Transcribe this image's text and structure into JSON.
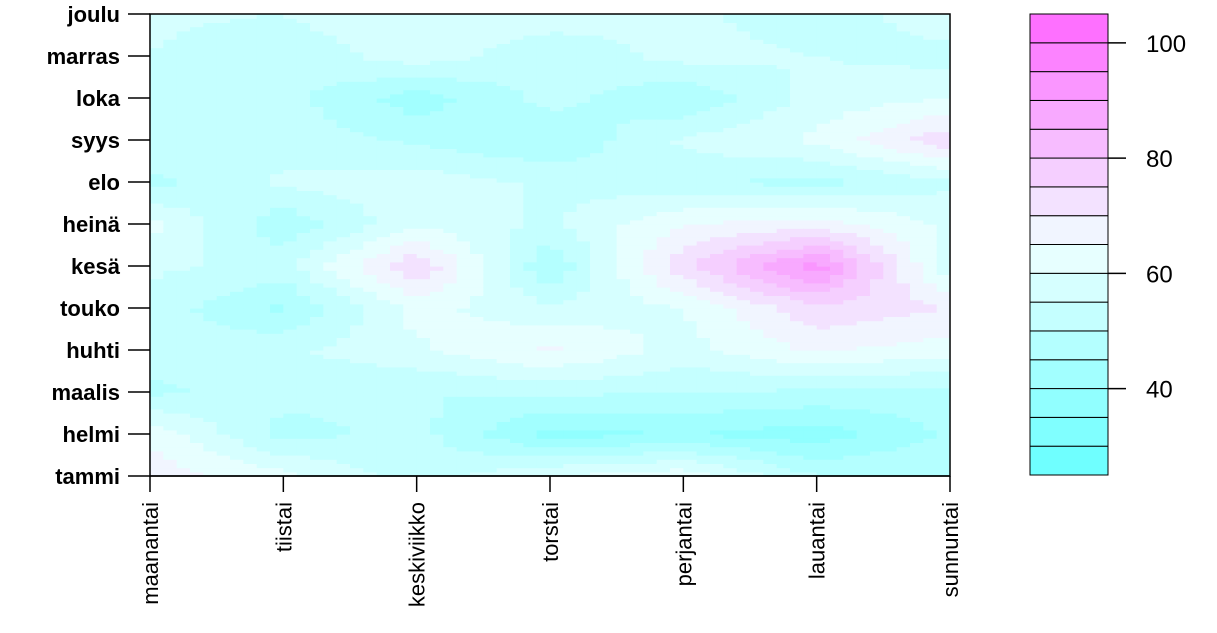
{
  "chart_data": {
    "type": "heatmap",
    "title": "",
    "xlabel": "",
    "ylabel": "",
    "x_categories": [
      "maanantai",
      "tiistai",
      "keskiviikko",
      "torstai",
      "perjantai",
      "lauantai",
      "sunnuntai"
    ],
    "y_categories": [
      "tammi",
      "helmi",
      "maalis",
      "huhti",
      "touko",
      "kesä",
      "heinä",
      "elo",
      "syys",
      "loka",
      "marras",
      "joulu"
    ],
    "values": [
      [
        68,
        62,
        52,
        60,
        64,
        50,
        50
      ],
      [
        64,
        48,
        52,
        38,
        40,
        37,
        46
      ],
      [
        49,
        52,
        50,
        51,
        50,
        49,
        48
      ],
      [
        52,
        54,
        59,
        66,
        58,
        66,
        62
      ],
      [
        53,
        44,
        62,
        56,
        60,
        74,
        70
      ],
      [
        56,
        53,
        75,
        45,
        74,
        93,
        56
      ],
      [
        62,
        46,
        59,
        54,
        65,
        68,
        59
      ],
      [
        48,
        56,
        58,
        54,
        51,
        48,
        54
      ],
      [
        55,
        53,
        49,
        45,
        56,
        61,
        74
      ],
      [
        53,
        52,
        42,
        52,
        45,
        57,
        60
      ],
      [
        55,
        51,
        58,
        51,
        57,
        55,
        53
      ],
      [
        56,
        55,
        60,
        58,
        56,
        52,
        58
      ]
    ],
    "color_scale": {
      "min": 25,
      "max": 105,
      "step": 5,
      "low_color": "#66FFFF",
      "mid_color": "#F0FFFF",
      "high_color": "#FF66FF",
      "ticks": [
        40,
        60,
        80,
        100
      ]
    },
    "legend_position": "right"
  }
}
